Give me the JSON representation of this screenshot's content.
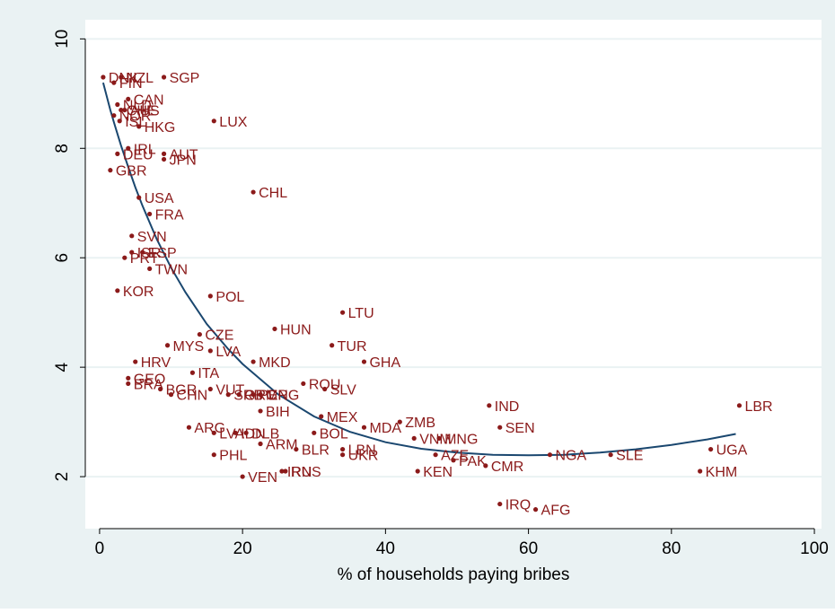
{
  "colors": {
    "background": "#eaf2f3",
    "plot_area": "#ffffff",
    "grid": "#eaf2f3",
    "marker": "#8b1a1a",
    "label": "#8b1a1a",
    "fit_line": "#1a476f",
    "axis": "#000000"
  },
  "chart_data": {
    "type": "scatter",
    "title": "",
    "xlabel": "% of households paying bribes",
    "ylabel": "",
    "xlim": [
      -2,
      101
    ],
    "ylim": [
      1.05,
      10.35
    ],
    "xticks": [
      0,
      20,
      40,
      60,
      80,
      100
    ],
    "yticks": [
      2,
      4,
      6,
      8,
      10
    ],
    "grid": "horizontal",
    "legend": "none",
    "points": [
      {
        "label": "DNK",
        "x": 0.5,
        "y": 9.3
      },
      {
        "label": "NZL",
        "x": 3.0,
        "y": 9.3
      },
      {
        "label": "FIN",
        "x": 2.0,
        "y": 9.2
      },
      {
        "label": "SGP",
        "x": 9.0,
        "y": 9.3
      },
      {
        "label": "CAN",
        "x": 4.0,
        "y": 8.9
      },
      {
        "label": "NLD",
        "x": 2.5,
        "y": 8.8
      },
      {
        "label": "AUS",
        "x": 3.5,
        "y": 8.7
      },
      {
        "label": "NOR",
        "x": 2.0,
        "y": 8.6
      },
      {
        "label": "CHE",
        "x": 3.0,
        "y": 8.7
      },
      {
        "label": "ISL",
        "x": 2.8,
        "y": 8.5
      },
      {
        "label": "HKG",
        "x": 5.5,
        "y": 8.4
      },
      {
        "label": "LUX",
        "x": 16.0,
        "y": 8.5
      },
      {
        "label": "IRL",
        "x": 4.0,
        "y": 8.0
      },
      {
        "label": "DEU",
        "x": 2.5,
        "y": 7.9
      },
      {
        "label": "AUT",
        "x": 9.0,
        "y": 7.9
      },
      {
        "label": "JPN",
        "x": 9.0,
        "y": 7.8
      },
      {
        "label": "GBR",
        "x": 1.5,
        "y": 7.6
      },
      {
        "label": "CHL",
        "x": 21.5,
        "y": 7.2
      },
      {
        "label": "USA",
        "x": 5.5,
        "y": 7.1
      },
      {
        "label": "FRA",
        "x": 7.0,
        "y": 6.8
      },
      {
        "label": "SVN",
        "x": 4.5,
        "y": 6.4
      },
      {
        "label": "ISR",
        "x": 4.5,
        "y": 6.1
      },
      {
        "label": "ESP",
        "x": 6.0,
        "y": 6.1
      },
      {
        "label": "PRT",
        "x": 3.5,
        "y": 6.0
      },
      {
        "label": "TWN",
        "x": 7.0,
        "y": 5.8
      },
      {
        "label": "KOR",
        "x": 2.5,
        "y": 5.4
      },
      {
        "label": "POL",
        "x": 15.5,
        "y": 5.3
      },
      {
        "label": "LTU",
        "x": 34.0,
        "y": 5.0
      },
      {
        "label": "HUN",
        "x": 24.5,
        "y": 4.7
      },
      {
        "label": "CZE",
        "x": 14.0,
        "y": 4.6
      },
      {
        "label": "MYS",
        "x": 9.5,
        "y": 4.4
      },
      {
        "label": "TUR",
        "x": 32.5,
        "y": 4.4
      },
      {
        "label": "LVA",
        "x": 15.5,
        "y": 4.3
      },
      {
        "label": "HRV",
        "x": 5.0,
        "y": 4.1
      },
      {
        "label": "MKD",
        "x": 21.5,
        "y": 4.1
      },
      {
        "label": "GHA",
        "x": 37.0,
        "y": 4.1
      },
      {
        "label": "ITA",
        "x": 13.0,
        "y": 3.9
      },
      {
        "label": "GEO",
        "x": 4.0,
        "y": 3.8
      },
      {
        "label": "BRA",
        "x": 4.0,
        "y": 3.7
      },
      {
        "label": "ROU",
        "x": 28.5,
        "y": 3.7
      },
      {
        "label": "BGR",
        "x": 8.5,
        "y": 3.6
      },
      {
        "label": "VUT",
        "x": 15.5,
        "y": 3.6
      },
      {
        "label": "SLV",
        "x": 31.5,
        "y": 3.6
      },
      {
        "label": "CHN",
        "x": 10.0,
        "y": 3.5
      },
      {
        "label": "SRB",
        "x": 18.0,
        "y": 3.5
      },
      {
        "label": "GRC",
        "x": 19.5,
        "y": 3.5
      },
      {
        "label": "PER",
        "x": 21.5,
        "y": 3.5
      },
      {
        "label": "MNG",
        "x": 22.5,
        "y": 3.5
      },
      {
        "label": "IND",
        "x": 54.5,
        "y": 3.3
      },
      {
        "label": "LBR",
        "x": 89.5,
        "y": 3.3
      },
      {
        "label": "BIH",
        "x": 22.5,
        "y": 3.2
      },
      {
        "label": "MEX",
        "x": 31.0,
        "y": 3.1
      },
      {
        "label": "ZMB",
        "x": 42.0,
        "y": 3.0
      },
      {
        "label": "MDA",
        "x": 37.0,
        "y": 2.9
      },
      {
        "label": "SEN",
        "x": 56.0,
        "y": 2.9
      },
      {
        "label": "ARG",
        "x": 12.5,
        "y": 2.9
      },
      {
        "label": "LVA",
        "x": 16.0,
        "y": 2.8
      },
      {
        "label": "IDN",
        "x": 19.0,
        "y": 2.8
      },
      {
        "label": "DLB",
        "x": 20.5,
        "y": 2.8
      },
      {
        "label": "BOL",
        "x": 30.0,
        "y": 2.8
      },
      {
        "label": "VNM",
        "x": 44.0,
        "y": 2.7
      },
      {
        "label": "MNG",
        "x": 47.5,
        "y": 2.7
      },
      {
        "label": "ARM",
        "x": 22.5,
        "y": 2.6
      },
      {
        "label": "BLR",
        "x": 27.5,
        "y": 2.5
      },
      {
        "label": "LBN",
        "x": 34.0,
        "y": 2.5
      },
      {
        "label": "UGA",
        "x": 85.5,
        "y": 2.5
      },
      {
        "label": "AZE",
        "x": 47.0,
        "y": 2.4
      },
      {
        "label": "NGA",
        "x": 63.0,
        "y": 2.4
      },
      {
        "label": "SLE",
        "x": 71.5,
        "y": 2.4
      },
      {
        "label": "PHL",
        "x": 16.0,
        "y": 2.4
      },
      {
        "label": "UKR",
        "x": 34.0,
        "y": 2.4
      },
      {
        "label": "PAK",
        "x": 49.5,
        "y": 2.3
      },
      {
        "label": "CMR",
        "x": 54.0,
        "y": 2.2
      },
      {
        "label": "IRN",
        "x": 25.5,
        "y": 2.1
      },
      {
        "label": "KEN",
        "x": 44.5,
        "y": 2.1
      },
      {
        "label": "RUS",
        "x": 26.0,
        "y": 2.1
      },
      {
        "label": "KHM",
        "x": 84.0,
        "y": 2.1
      },
      {
        "label": "VEN",
        "x": 20.0,
        "y": 2.0
      },
      {
        "label": "IRQ",
        "x": 56.0,
        "y": 1.5
      },
      {
        "label": "AFG",
        "x": 61.0,
        "y": 1.4
      }
    ],
    "fit_curve": {
      "x": [
        0.5,
        1,
        1.5,
        2,
        3,
        4,
        5,
        6,
        8,
        10,
        12,
        15,
        18,
        20,
        25,
        30,
        35,
        40,
        45,
        50,
        55,
        60,
        65,
        70,
        75,
        80,
        85,
        89
      ],
      "y": [
        9.2,
        8.95,
        8.7,
        8.48,
        8.05,
        7.66,
        7.29,
        6.95,
        6.34,
        5.82,
        5.37,
        4.79,
        4.33,
        4.06,
        3.5,
        3.1,
        2.82,
        2.63,
        2.51,
        2.44,
        2.4,
        2.39,
        2.4,
        2.44,
        2.5,
        2.58,
        2.68,
        2.78
      ]
    }
  }
}
